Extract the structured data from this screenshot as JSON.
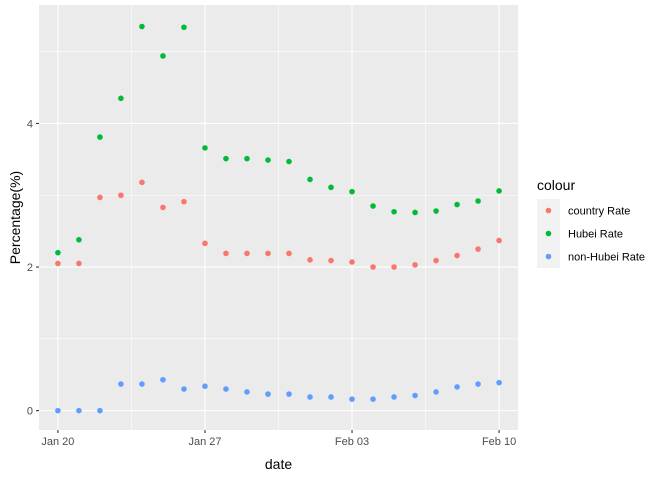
{
  "chart_data": {
    "type": "scatter",
    "xlabel": "date",
    "ylabel": "Percentage(%)",
    "x_dates": [
      "Jan 20",
      "Jan 21",
      "Jan 22",
      "Jan 23",
      "Jan 24",
      "Jan 25",
      "Jan 26",
      "Jan 27",
      "Jan 28",
      "Jan 29",
      "Jan 30",
      "Jan 31",
      "Feb 01",
      "Feb 02",
      "Feb 03",
      "Feb 04",
      "Feb 05",
      "Feb 06",
      "Feb 07",
      "Feb 08",
      "Feb 09",
      "Feb 10"
    ],
    "xlim": [
      "Jan 19.1",
      "Feb 10.9"
    ],
    "x_ticks": [
      {
        "label": "Jan 20",
        "day": 0
      },
      {
        "label": "Jan 27",
        "day": 7
      },
      {
        "label": "Feb 03",
        "day": 14
      },
      {
        "label": "Feb 10",
        "day": 21
      }
    ],
    "ylim": [
      -0.27,
      5.65
    ],
    "y_ticks": [
      0,
      2,
      4
    ],
    "grid": true,
    "legend_title": "colour",
    "legend_position": "right",
    "series": [
      {
        "name": "country Rate",
        "color": "#F8766D",
        "values": [
          2.05,
          2.05,
          2.97,
          3.0,
          3.18,
          2.83,
          2.91,
          2.33,
          2.19,
          2.19,
          2.19,
          2.19,
          2.1,
          2.09,
          2.07,
          2.0,
          2.0,
          2.03,
          2.09,
          2.16,
          2.25,
          2.37
        ]
      },
      {
        "name": "Hubei Rate",
        "color": "#00BA38",
        "values": [
          2.2,
          2.38,
          3.81,
          4.35,
          5.35,
          4.94,
          5.34,
          3.66,
          3.51,
          3.51,
          3.49,
          3.47,
          3.22,
          3.11,
          3.05,
          2.85,
          2.77,
          2.76,
          2.78,
          2.87,
          2.92,
          3.06
        ]
      },
      {
        "name": "non-Hubei Rate",
        "color": "#619CFF",
        "values": [
          0.0,
          0.0,
          0.0,
          0.37,
          0.37,
          0.43,
          0.3,
          0.34,
          0.3,
          0.26,
          0.23,
          0.23,
          0.19,
          0.19,
          0.16,
          0.16,
          0.19,
          0.21,
          0.26,
          0.33,
          0.37,
          0.39
        ]
      }
    ]
  }
}
